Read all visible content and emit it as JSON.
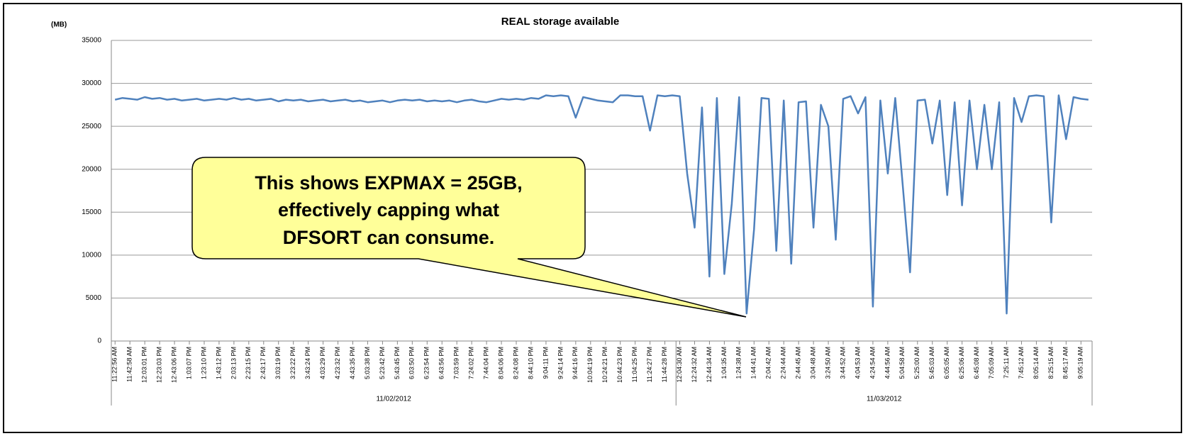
{
  "chart_data": {
    "type": "line",
    "title": "REAL storage available",
    "y_label": "(MB)",
    "color": "#4f81bd",
    "categories": [
      "11:22:56 AM",
      null,
      "11:42:58 AM",
      null,
      "12:03:01 PM",
      null,
      "12:23:03 PM",
      null,
      "12:43:06 PM",
      null,
      "1:03:07 PM",
      null,
      "1:23:10 PM",
      null,
      "1:43:12 PM",
      null,
      "2:03:13 PM",
      null,
      "2:23:15 PM",
      null,
      "2:43:17 PM",
      null,
      "3:03:19 PM",
      null,
      "3:23:22 PM",
      null,
      "3:43:24 PM",
      null,
      "4:03:29 PM",
      null,
      "4:23:32 PM",
      null,
      "4:43:35 PM",
      null,
      "5:03:38 PM",
      null,
      "5:23:42 PM",
      null,
      "5:43:45 PM",
      null,
      "6:03:50 PM",
      null,
      "6:23:54 PM",
      null,
      "6:43:56 PM",
      null,
      "7:03:59 PM",
      null,
      "7:24:02 PM",
      null,
      "7:44:04 PM",
      null,
      "8:04:06 PM",
      null,
      "8:24:08 PM",
      null,
      "8:44:10 PM",
      null,
      "9:04:11 PM",
      null,
      "9:24:14 PM",
      null,
      "9:44:16 PM",
      null,
      "10:04:19 PM",
      null,
      "10:24:21 PM",
      null,
      "10:44:23 PM",
      null,
      "11:04:25 PM",
      null,
      "11:24:27 PM",
      null,
      "11:44:28 PM",
      null,
      "12:04:30 AM",
      null,
      "12:24:32 AM",
      null,
      "12:44:34 AM",
      null,
      "1:04:35 AM",
      null,
      "1:24:38 AM",
      null,
      "1:44:41 AM",
      null,
      "2:04:42 AM",
      null,
      "2:24:44 AM",
      null,
      "2:44:45 AM",
      null,
      "3:04:48 AM",
      null,
      "3:24:50 AM",
      null,
      "3:44:52 AM",
      null,
      "4:04:53 AM",
      null,
      "4:24:54 AM",
      null,
      "4:44:56 AM",
      null,
      "5:04:58 AM",
      null,
      "5:25:00 AM",
      null,
      "5:45:03 AM",
      null,
      "6:05:05 AM",
      null,
      "6:25:06 AM",
      null,
      "6:45:08 AM",
      null,
      "7:05:09 AM",
      null,
      "7:25:11 AM",
      null,
      "7:45:12 AM",
      null,
      "8:05:14 AM",
      null,
      "8:25:15 AM",
      null,
      "8:45:17 AM",
      null,
      "9:05:19 AM",
      null
    ],
    "values": [
      28100,
      28300,
      28200,
      28100,
      28400,
      28200,
      28300,
      28100,
      28200,
      28000,
      28100,
      28200,
      28000,
      28100,
      28200,
      28100,
      28300,
      28100,
      28200,
      28000,
      28100,
      28200,
      27900,
      28100,
      28000,
      28100,
      27900,
      28000,
      28100,
      27900,
      28000,
      28100,
      27900,
      28000,
      27800,
      27900,
      28000,
      27800,
      28000,
      28100,
      28000,
      28100,
      27900,
      28000,
      27900,
      28000,
      27800,
      28000,
      28100,
      27900,
      27800,
      28000,
      28200,
      28100,
      28200,
      28100,
      28300,
      28200,
      28600,
      28500,
      28600,
      28500,
      26000,
      28400,
      28200,
      28000,
      27900,
      27800,
      28600,
      28600,
      28500,
      28500,
      24500,
      28600,
      28500,
      28600,
      28500,
      19500,
      13200,
      27200,
      7500,
      28300,
      7800,
      16000,
      28400,
      3200,
      13000,
      28300,
      28200,
      10500,
      28000,
      9000,
      27800,
      27900,
      13200,
      27500,
      25000,
      11800,
      28200,
      28500,
      26500,
      28400,
      4000,
      28000,
      19500,
      28300,
      18300,
      8000,
      28000,
      28100,
      23000,
      28000,
      17000,
      27800,
      15800,
      28000,
      20000,
      27500,
      20000,
      27800,
      3200,
      28300,
      25500,
      28500,
      28600,
      28500,
      13800,
      28600,
      23500,
      28400,
      28200,
      28100
    ],
    "x_groups": [
      {
        "label": "11/02/2012",
        "span": 76
      },
      {
        "label": "11/03/2012",
        "span": 56
      }
    ],
    "ylim": [
      0,
      35000
    ],
    "yticks": [
      0,
      5000,
      10000,
      15000,
      20000,
      25000,
      30000,
      35000
    ],
    "grid": true,
    "annotation": [
      "This shows EXPMAX = 25GB,",
      "effectively capping what",
      "DFSORT can consume."
    ]
  }
}
